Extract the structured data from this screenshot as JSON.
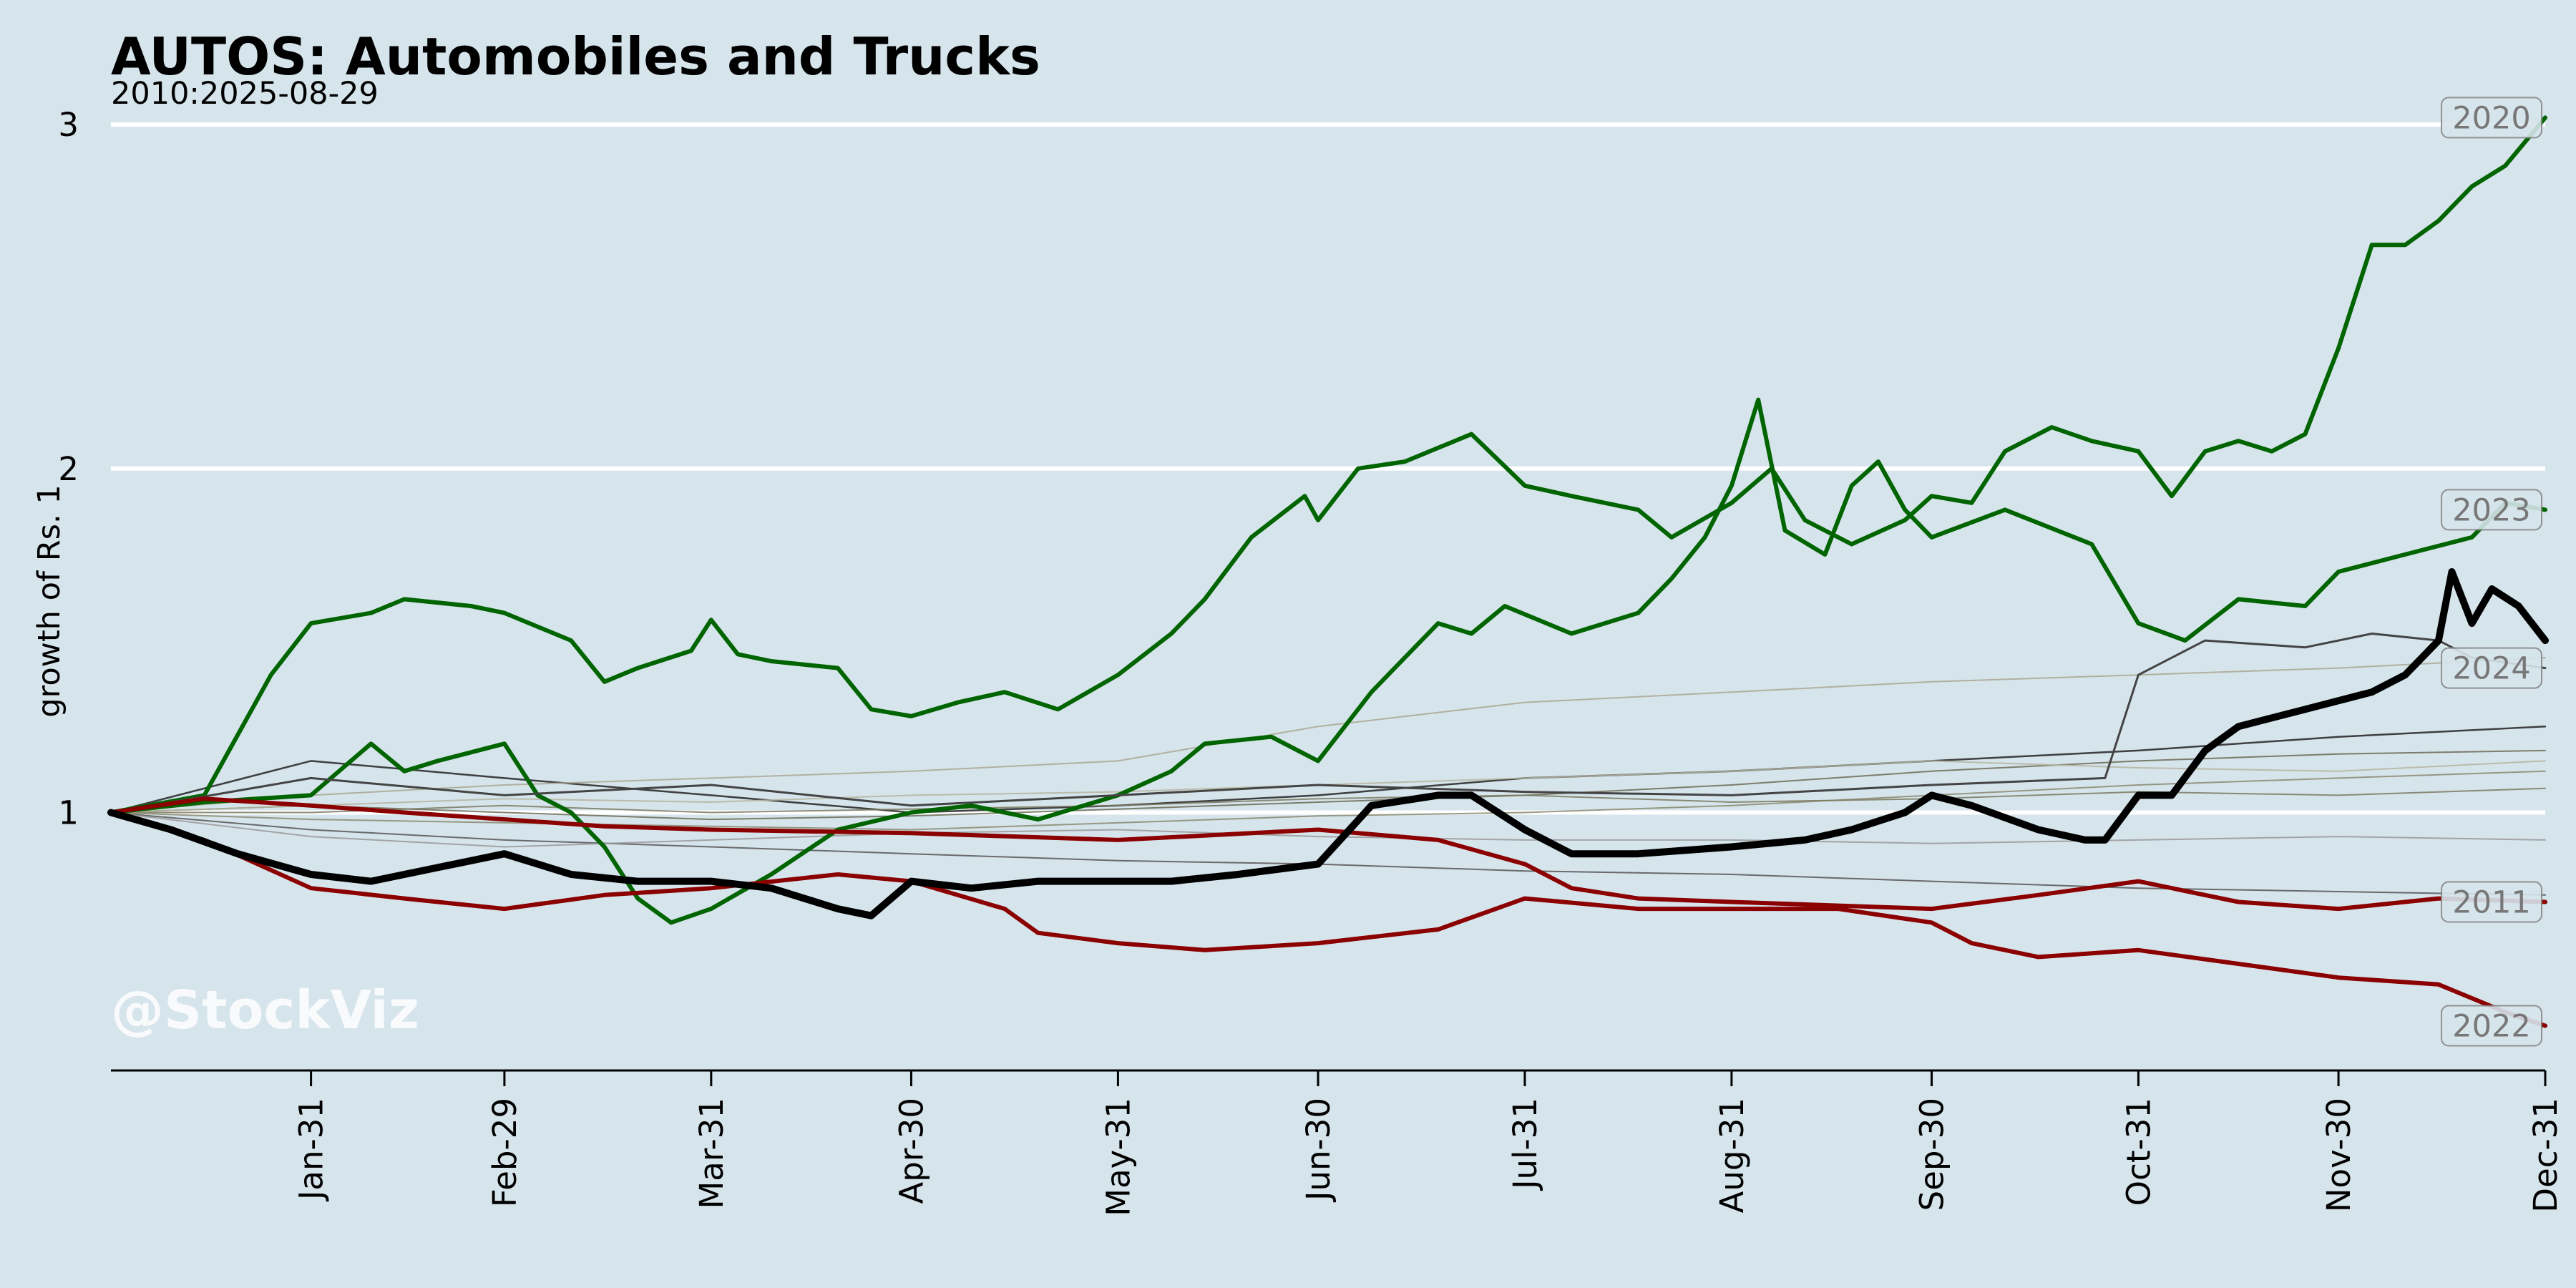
{
  "chart_data": {
    "type": "line",
    "title": "AUTOS: Automobiles and Trucks",
    "subtitle": "2010:2025-08-29",
    "ylabel": "growth of Rs. 1",
    "watermark": "@StockViz",
    "x_ticks": [
      "Jan-31",
      "Feb-29",
      "Mar-31",
      "Apr-30",
      "May-31",
      "Jun-30",
      "Jul-31",
      "Aug-31",
      "Sep-30",
      "Oct-31",
      "Nov-30",
      "Dec-31"
    ],
    "x_tick_days": [
      31,
      60,
      91,
      121,
      152,
      182,
      213,
      244,
      274,
      305,
      335,
      366
    ],
    "ylim": [
      0.25,
      3.05
    ],
    "y_ticks": [
      1,
      2,
      3
    ],
    "grid_y": true,
    "colors": {
      "background": "#d6e4eb",
      "up": "#006400",
      "down": "#8b0000",
      "current": "#000000",
      "grid": "#ffffff"
    },
    "series": [
      {
        "name": "2020",
        "label": "2020",
        "color": "#006400",
        "width": 6,
        "x": [
          1,
          15,
          25,
          31,
          40,
          45,
          55,
          60,
          70,
          75,
          80,
          88,
          91,
          95,
          100,
          110,
          115,
          121,
          128,
          135,
          143,
          152,
          160,
          165,
          172,
          180,
          182,
          188,
          195,
          200,
          205,
          213,
          220,
          225,
          230,
          235,
          244,
          250,
          255,
          262,
          270,
          274,
          280,
          285,
          292,
          298,
          305,
          310,
          315,
          320,
          325,
          330,
          335,
          340,
          345,
          350,
          355,
          360,
          366
        ],
        "y": [
          1.0,
          1.05,
          1.4,
          1.55,
          1.58,
          1.62,
          1.6,
          1.58,
          1.5,
          1.38,
          1.42,
          1.47,
          1.56,
          1.46,
          1.44,
          1.42,
          1.3,
          1.28,
          1.32,
          1.35,
          1.3,
          1.4,
          1.52,
          1.62,
          1.8,
          1.92,
          1.85,
          2.0,
          2.02,
          2.06,
          2.1,
          1.95,
          1.92,
          1.9,
          1.88,
          1.8,
          1.9,
          2.0,
          1.85,
          1.78,
          1.85,
          1.92,
          1.9,
          2.05,
          2.12,
          2.08,
          2.05,
          1.92,
          2.05,
          2.08,
          2.05,
          2.1,
          2.35,
          2.65,
          2.65,
          2.72,
          2.82,
          2.88,
          3.02
        ]
      },
      {
        "name": "2023",
        "label": "2023",
        "color": "#006400",
        "width": 6,
        "x": [
          1,
          15,
          31,
          40,
          45,
          50,
          60,
          65,
          70,
          75,
          80,
          85,
          91,
          100,
          110,
          121,
          130,
          140,
          152,
          160,
          165,
          175,
          182,
          190,
          195,
          200,
          205,
          210,
          220,
          230,
          235,
          240,
          244,
          248,
          252,
          258,
          262,
          266,
          270,
          274,
          285,
          298,
          305,
          312,
          320,
          330,
          335,
          345,
          355,
          360,
          366
        ],
        "y": [
          1.0,
          1.03,
          1.05,
          1.2,
          1.12,
          1.15,
          1.2,
          1.05,
          1.0,
          0.9,
          0.75,
          0.68,
          0.72,
          0.82,
          0.95,
          1.0,
          1.02,
          0.98,
          1.05,
          1.12,
          1.2,
          1.22,
          1.15,
          1.35,
          1.45,
          1.55,
          1.52,
          1.6,
          1.52,
          1.58,
          1.68,
          1.8,
          1.95,
          2.2,
          1.82,
          1.75,
          1.95,
          2.02,
          1.88,
          1.8,
          1.88,
          1.78,
          1.55,
          1.5,
          1.62,
          1.6,
          1.7,
          1.75,
          1.8,
          1.9,
          1.88
        ]
      },
      {
        "name": "2024",
        "label": "2024",
        "color": "#444444",
        "width": 3,
        "x": [
          1,
          31,
          60,
          91,
          121,
          152,
          182,
          213,
          244,
          274,
          300,
          305,
          315,
          330,
          340,
          350,
          355,
          366
        ],
        "y": [
          1.0,
          1.1,
          1.05,
          1.08,
          1.02,
          1.05,
          1.08,
          1.06,
          1.05,
          1.08,
          1.1,
          1.4,
          1.5,
          1.48,
          1.52,
          1.5,
          1.45,
          1.42
        ]
      },
      {
        "name": "2011",
        "label": "2011",
        "color": "#8b0000",
        "width": 6,
        "x": [
          1,
          15,
          31,
          45,
          60,
          75,
          91,
          121,
          152,
          182,
          200,
          213,
          220,
          230,
          244,
          274,
          290,
          305,
          320,
          335,
          350,
          366
        ],
        "y": [
          1.0,
          1.04,
          1.02,
          1.0,
          0.98,
          0.96,
          0.95,
          0.94,
          0.92,
          0.95,
          0.92,
          0.85,
          0.78,
          0.75,
          0.74,
          0.72,
          0.76,
          0.8,
          0.74,
          0.72,
          0.75,
          0.74
        ]
      },
      {
        "name": "2022",
        "label": "2022",
        "color": "#8b0000",
        "width": 6,
        "x": [
          1,
          15,
          31,
          45,
          60,
          75,
          91,
          110,
          121,
          135,
          140,
          152,
          165,
          182,
          200,
          213,
          230,
          244,
          260,
          274,
          280,
          290,
          305,
          320,
          335,
          350,
          360,
          366
        ],
        "y": [
          1.0,
          0.92,
          0.78,
          0.75,
          0.72,
          0.76,
          0.78,
          0.82,
          0.8,
          0.72,
          0.65,
          0.62,
          0.6,
          0.62,
          0.66,
          0.75,
          0.72,
          0.72,
          0.72,
          0.68,
          0.62,
          0.58,
          0.6,
          0.56,
          0.52,
          0.5,
          0.42,
          0.38
        ]
      },
      {
        "name": "current",
        "label": "",
        "color": "#000000",
        "width": 10,
        "x": [
          1,
          10,
          20,
          31,
          40,
          50,
          60,
          70,
          80,
          91,
          100,
          110,
          115,
          121,
          130,
          140,
          152,
          160,
          170,
          182,
          190,
          200,
          205,
          213,
          220,
          230,
          244,
          255,
          262,
          270,
          274,
          280,
          290,
          297,
          300,
          305,
          310,
          315,
          320,
          330,
          340,
          345,
          350,
          352,
          355,
          358,
          362,
          366
        ],
        "y": [
          1.0,
          0.95,
          0.88,
          0.82,
          0.8,
          0.84,
          0.88,
          0.82,
          0.8,
          0.8,
          0.78,
          0.72,
          0.7,
          0.8,
          0.78,
          0.8,
          0.8,
          0.8,
          0.82,
          0.85,
          1.02,
          1.05,
          1.05,
          0.95,
          0.88,
          0.88,
          0.9,
          0.92,
          0.95,
          1.0,
          1.05,
          1.02,
          0.95,
          0.92,
          0.92,
          1.05,
          1.05,
          1.18,
          1.25,
          1.3,
          1.35,
          1.4,
          1.5,
          1.7,
          1.55,
          1.65,
          1.6,
          1.5
        ]
      },
      {
        "name": "bg1",
        "label": "",
        "color": "#222222",
        "width": 2.5,
        "x": [
          1,
          31,
          60,
          91,
          121,
          152,
          182,
          213,
          244,
          274,
          305,
          335,
          366
        ],
        "y": [
          1.0,
          1.15,
          1.1,
          1.05,
          1.0,
          1.02,
          1.05,
          1.1,
          1.12,
          1.15,
          1.18,
          1.22,
          1.25
        ]
      },
      {
        "name": "bg2",
        "label": "",
        "color": "#555555",
        "width": 2,
        "x": [
          1,
          31,
          60,
          91,
          121,
          152,
          182,
          213,
          244,
          274,
          305,
          335,
          366
        ],
        "y": [
          1.0,
          0.95,
          0.92,
          0.9,
          0.88,
          0.86,
          0.85,
          0.83,
          0.82,
          0.8,
          0.78,
          0.77,
          0.76
        ]
      },
      {
        "name": "bg3",
        "label": "",
        "color": "#6b6b55",
        "width": 2,
        "x": [
          1,
          31,
          60,
          91,
          121,
          152,
          182,
          213,
          244,
          274,
          305,
          335,
          366
        ],
        "y": [
          1.0,
          1.02,
          1.0,
          0.98,
          0.99,
          1.01,
          1.03,
          1.05,
          1.08,
          1.12,
          1.15,
          1.17,
          1.18
        ]
      },
      {
        "name": "bg4",
        "label": "",
        "color": "#8a8a70",
        "width": 2,
        "x": [
          1,
          31,
          60,
          91,
          121,
          152,
          182,
          213,
          244,
          274,
          305,
          335,
          366
        ],
        "y": [
          1.0,
          0.98,
          0.97,
          0.96,
          0.95,
          0.97,
          0.99,
          1.0,
          1.02,
          1.05,
          1.08,
          1.1,
          1.12
        ]
      },
      {
        "name": "bg5",
        "label": "",
        "color": "#a8a890",
        "width": 2,
        "x": [
          1,
          31,
          60,
          91,
          121,
          152,
          182,
          213,
          244,
          274,
          305,
          335,
          366
        ],
        "y": [
          1.0,
          1.05,
          1.08,
          1.1,
          1.12,
          1.15,
          1.25,
          1.32,
          1.35,
          1.38,
          1.4,
          1.42,
          1.45
        ]
      },
      {
        "name": "bg6",
        "label": "",
        "color": "#999999",
        "width": 2,
        "x": [
          1,
          31,
          60,
          91,
          121,
          152,
          182,
          213,
          244,
          274,
          305,
          335,
          366
        ],
        "y": [
          1.0,
          0.93,
          0.9,
          0.92,
          0.94,
          0.95,
          0.93,
          0.92,
          0.92,
          0.91,
          0.92,
          0.93,
          0.92
        ]
      },
      {
        "name": "bg7",
        "label": "",
        "color": "#7a7a60",
        "width": 2,
        "x": [
          1,
          31,
          60,
          91,
          121,
          152,
          182,
          213,
          244,
          274,
          305,
          335,
          366
        ],
        "y": [
          1.0,
          1.0,
          1.02,
          1.0,
          1.01,
          1.02,
          1.04,
          1.05,
          1.03,
          1.04,
          1.06,
          1.05,
          1.07
        ]
      },
      {
        "name": "bg8",
        "label": "",
        "color": "#b5b5a0",
        "width": 2,
        "x": [
          1,
          31,
          60,
          91,
          121,
          152,
          182,
          213,
          244,
          274,
          305,
          335,
          366
        ],
        "y": [
          1.0,
          1.02,
          1.04,
          1.03,
          1.05,
          1.06,
          1.08,
          1.1,
          1.12,
          1.15,
          1.13,
          1.12,
          1.15
        ]
      }
    ]
  }
}
